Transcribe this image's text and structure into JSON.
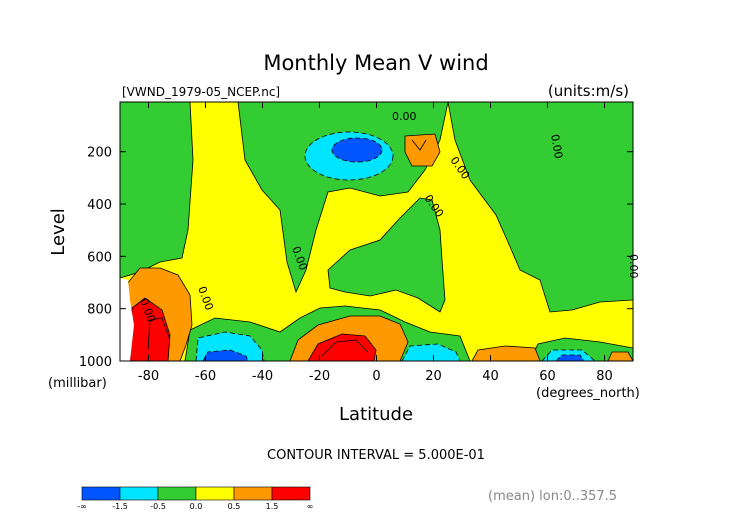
{
  "chart_data": {
    "type": "heatmap",
    "title": "Monthly Mean V wind",
    "file_label": "[VWND_1979-05_NCEP.nc]",
    "units_label": "(units:m/s)",
    "xlabel": "Latitude",
    "x_units": "(degrees_north)",
    "ylabel": "Level",
    "y_units": "(millibar)",
    "xlim": [
      -90,
      90
    ],
    "ylim": [
      1000,
      10
    ],
    "x_ticks": [
      "-80",
      "-60",
      "-40",
      "-20",
      "0",
      "20",
      "40",
      "60",
      "80"
    ],
    "x_tick_values": [
      -80,
      -60,
      -40,
      -20,
      0,
      20,
      40,
      60,
      80
    ],
    "y_ticks": [
      "200",
      "400",
      "600",
      "800",
      "1000"
    ],
    "y_tick_values": [
      200,
      400,
      600,
      800,
      1000
    ],
    "contour_interval_text": "CONTOUR INTERVAL = 5.000E-01",
    "footer_note": "(mean) lon:0..357.5",
    "contour_labels": [
      "0.00",
      "0.00",
      "0.00",
      "0.00",
      "0.00",
      "0.00",
      "0.00",
      "0.00"
    ],
    "colorbar": {
      "labels": [
        "-∞",
        "-1.5",
        "-0.5",
        "0.0",
        "0.5",
        "1.5",
        "∞"
      ],
      "colors": [
        "#0055ff",
        "#00e5ff",
        "#33cc33",
        "#ffff00",
        "#ff9900",
        "#ff0000"
      ],
      "bins": [
        [
          -99,
          -1.5
        ],
        [
          -1.5,
          -0.5
        ],
        [
          -0.5,
          0.0
        ],
        [
          0.0,
          0.5
        ],
        [
          0.5,
          1.5
        ],
        [
          1.5,
          99
        ]
      ]
    },
    "background_category": "0.0 to 0.5",
    "regions": [
      {
        "id": "sh-polar-surface",
        "category": "0.5 to 1.5",
        "lat": [
          -88,
          -72
        ],
        "level": [
          650,
          1000
        ]
      },
      {
        "id": "sh-polar-core",
        "category": ">1.5",
        "lat": [
          -85,
          -78
        ],
        "level": [
          780,
          1000
        ]
      },
      {
        "id": "sh-midlat-surface",
        "category": "-0.5 to 0.0",
        "lat": [
          -65,
          -32
        ],
        "level": [
          880,
          1000
        ]
      },
      {
        "id": "sh-midlat-core",
        "category": "-1.5 to -0.5",
        "lat": [
          -61,
          -42
        ],
        "level": [
          930,
          1000
        ]
      },
      {
        "id": "upper-trop-jet",
        "category": "-1.5 to -0.5",
        "lat": [
          -24,
          8
        ],
        "level": [
          90,
          290
        ]
      },
      {
        "id": "upper-trop-core",
        "category": "< -1.5",
        "lat": [
          -17,
          2
        ],
        "level": [
          140,
          230
        ]
      },
      {
        "id": "tropical-surface",
        "category": "0.5 to 1.5",
        "lat": [
          -30,
          12
        ],
        "level": [
          870,
          1000
        ]
      },
      {
        "id": "tropical-surface-core",
        "category": ">1.5",
        "lat": [
          -25,
          0
        ],
        "level": [
          930,
          1000
        ]
      },
      {
        "id": "nh-upper",
        "category": "0.5 to 1.5",
        "lat": [
          11,
          20
        ],
        "level": [
          120,
          240
        ]
      },
      {
        "id": "nh-tropical-surface",
        "category": "-1.5 to -0.5",
        "lat": [
          8,
          22
        ],
        "level": [
          950,
          1000
        ]
      },
      {
        "id": "nh-subtrop-surface",
        "category": "0.5 to 1.5",
        "lat": [
          33,
          55
        ],
        "level": [
          950,
          1000
        ]
      },
      {
        "id": "nh-midlat-surface",
        "category": "-1.5 to -0.5",
        "lat": [
          60,
          75
        ],
        "level": [
          960,
          1000
        ]
      },
      {
        "id": "nh-polar-surface",
        "category": "0.5 to 1.5",
        "lat": [
          78,
          88
        ],
        "level": [
          960,
          1000
        ]
      }
    ]
  }
}
